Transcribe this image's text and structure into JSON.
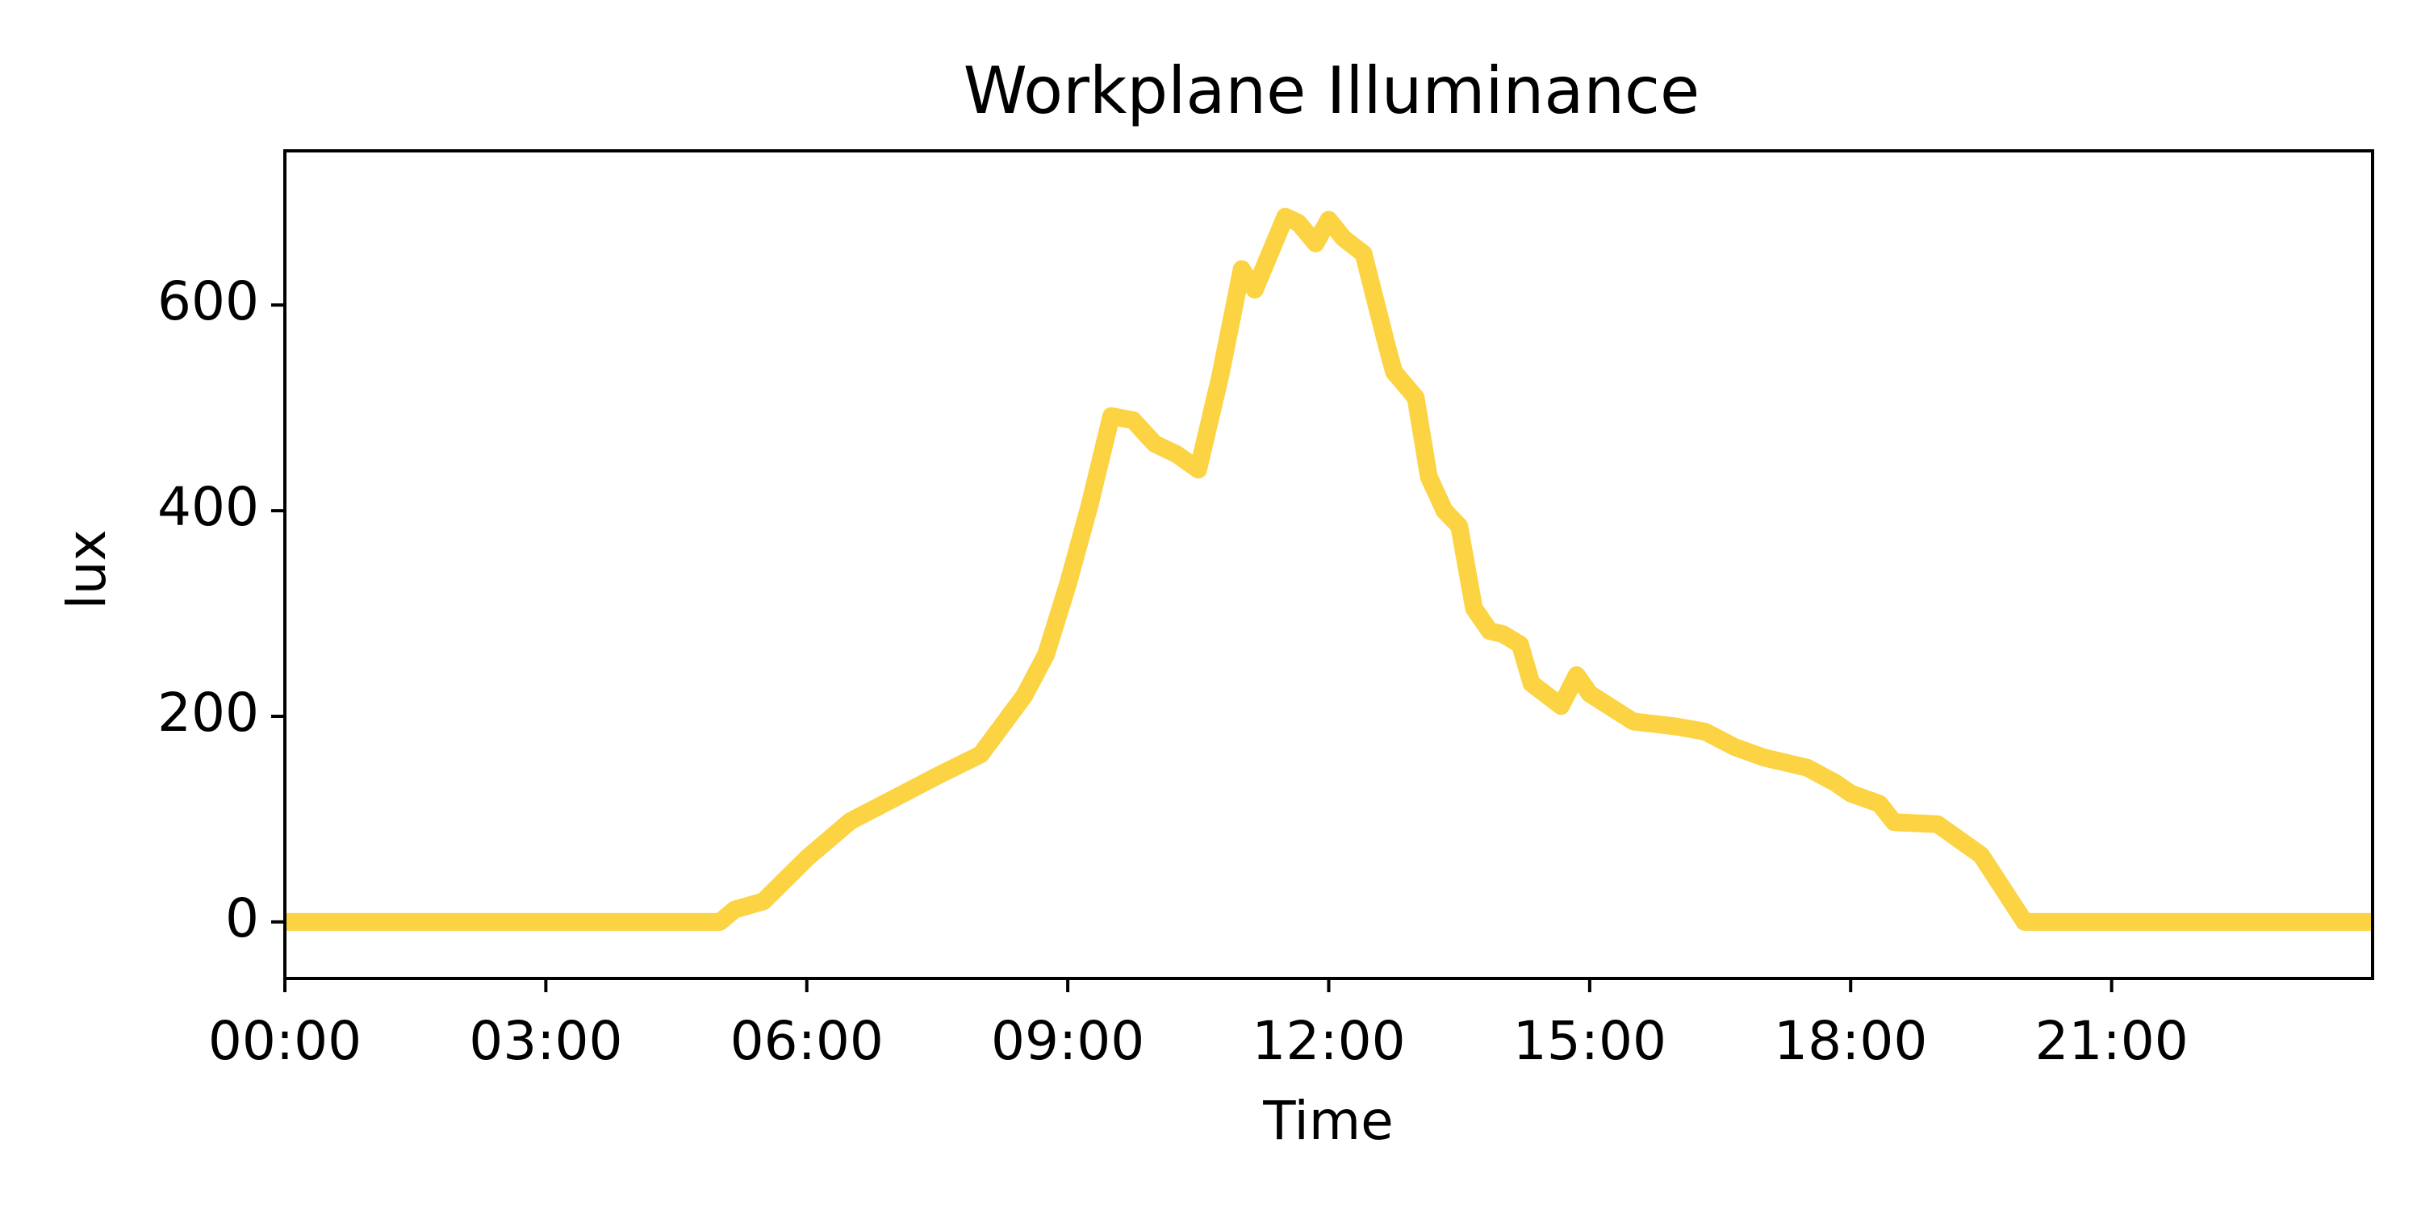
{
  "chart_data": {
    "type": "line",
    "title": "Workplane Illuminance",
    "xlabel": "Time",
    "ylabel": "lux",
    "x_tick_labels": [
      "00:00",
      "03:00",
      "06:00",
      "09:00",
      "12:00",
      "15:00",
      "18:00",
      "21:00"
    ],
    "x_ticks_hours": [
      0,
      3,
      6,
      9,
      12,
      15,
      18,
      21
    ],
    "y_ticks": [
      0,
      200,
      400,
      600
    ],
    "xlim_hours": [
      0,
      24
    ],
    "ylim": [
      -55,
      750
    ],
    "grid": false,
    "series": [
      {
        "color": "#fbd343",
        "x_hours": [
          0,
          1,
          2,
          3,
          4,
          5,
          5.17,
          5.5,
          6,
          6.5,
          7,
          7.5,
          8,
          8.5,
          8.75,
          9,
          9.25,
          9.5,
          9.75,
          10,
          10.25,
          10.5,
          10.75,
          11,
          11.15,
          11.5,
          11.65,
          11.85,
          12,
          12.17,
          12.4,
          12.67,
          12.75,
          13,
          13.15,
          13.33,
          13.5,
          13.67,
          13.85,
          14,
          14.2,
          14.33,
          14.67,
          14.85,
          15,
          15.5,
          16,
          16.33,
          16.67,
          17,
          17.5,
          17.83,
          18,
          18.33,
          18.5,
          19,
          19.5,
          20,
          21,
          22,
          23,
          24
        ],
        "values": [
          0,
          0,
          0,
          0,
          0,
          0,
          12,
          20,
          62,
          98,
          120,
          142,
          163,
          220,
          260,
          328,
          405,
          492,
          488,
          465,
          455,
          440,
          530,
          635,
          615,
          686,
          680,
          660,
          683,
          665,
          650,
          560,
          535,
          510,
          433,
          400,
          385,
          305,
          283,
          280,
          270,
          232,
          210,
          240,
          222,
          195,
          190,
          185,
          170,
          160,
          150,
          135,
          125,
          115,
          97,
          95,
          65,
          0,
          0,
          0,
          0,
          0
        ]
      }
    ]
  }
}
